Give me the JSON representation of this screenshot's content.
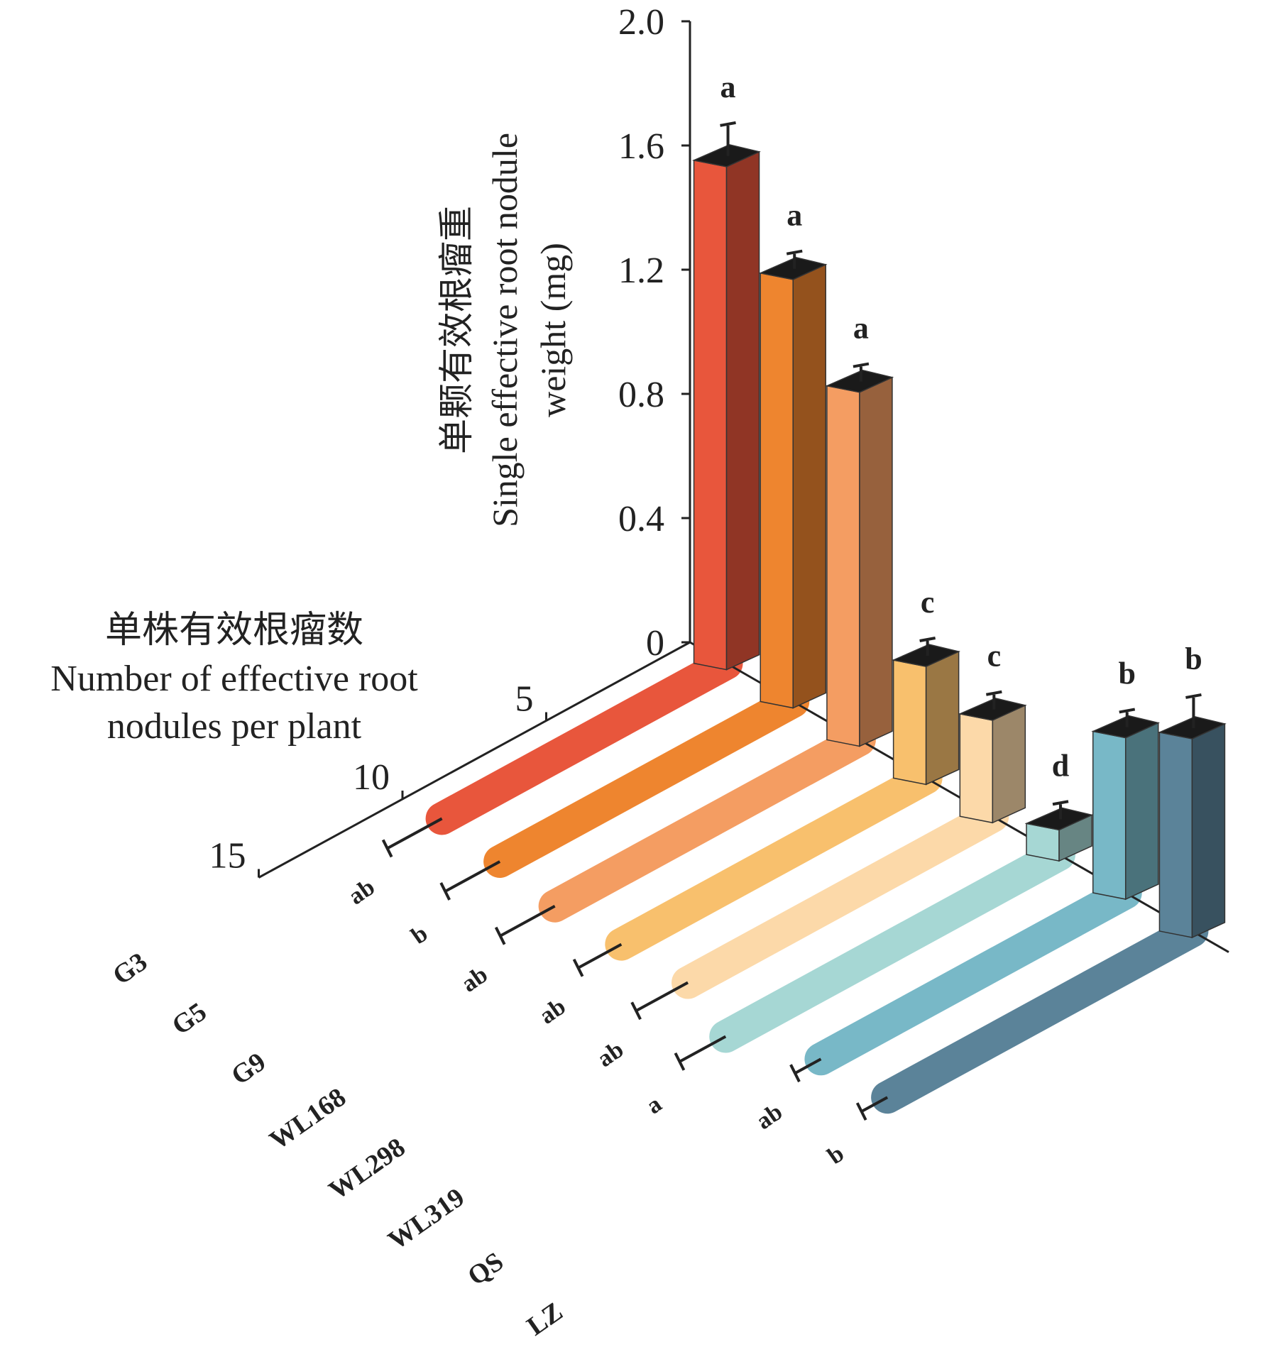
{
  "chart_data": {
    "type": "bar",
    "categories": [
      "G3",
      "G5",
      "G9",
      "WL168",
      "WL298",
      "WL319",
      "QS",
      "LZ"
    ],
    "colors": [
      "#e8563c",
      "#ee852f",
      "#f49d62",
      "#f8c06d",
      "#fcd9a9",
      "#a6d7d4",
      "#78b8c7",
      "#5b8399"
    ],
    "weight_axis": {
      "label_zh": "单颗有效根瘤重",
      "label_en_1": "Single effective root nodule",
      "label_en_2": "weight (mg)",
      "ticks": [
        "0",
        "0.4",
        "0.8",
        "1.2",
        "1.6",
        "2.0"
      ],
      "tick_values": [
        0,
        0.4,
        0.8,
        1.2,
        1.6,
        2.0
      ],
      "ylim": [
        0,
        2.0
      ]
    },
    "count_axis": {
      "label_zh": "单株有效根瘤数",
      "label_en_1": "Number of effective root",
      "label_en_2": "nodules per plant",
      "ticks": [
        "5",
        "10",
        "15"
      ],
      "tick_values": [
        5,
        10,
        15
      ],
      "lim": [
        0,
        15
      ]
    },
    "weight_values": [
      1.62,
      1.38,
      1.14,
      0.38,
      0.33,
      0.1,
      0.52,
      0.64
    ],
    "weight_errors": [
      0.08,
      0.03,
      0.03,
      0.03,
      0.03,
      0.03,
      0.03,
      0.08
    ],
    "weight_letters": [
      "a",
      "a",
      "a",
      "c",
      "c",
      "d",
      "b",
      "b"
    ],
    "count_values": [
      9.9,
      10.2,
      10.6,
      10.6,
      10.6,
      11.6,
      10.6,
      10.6
    ],
    "count_errors": [
      1.9,
      1.9,
      1.9,
      1.5,
      1.8,
      1.6,
      0.9,
      0.9
    ],
    "count_letters": [
      "ab",
      "b",
      "ab",
      "ab",
      "ab",
      "a",
      "ab",
      "b"
    ]
  }
}
